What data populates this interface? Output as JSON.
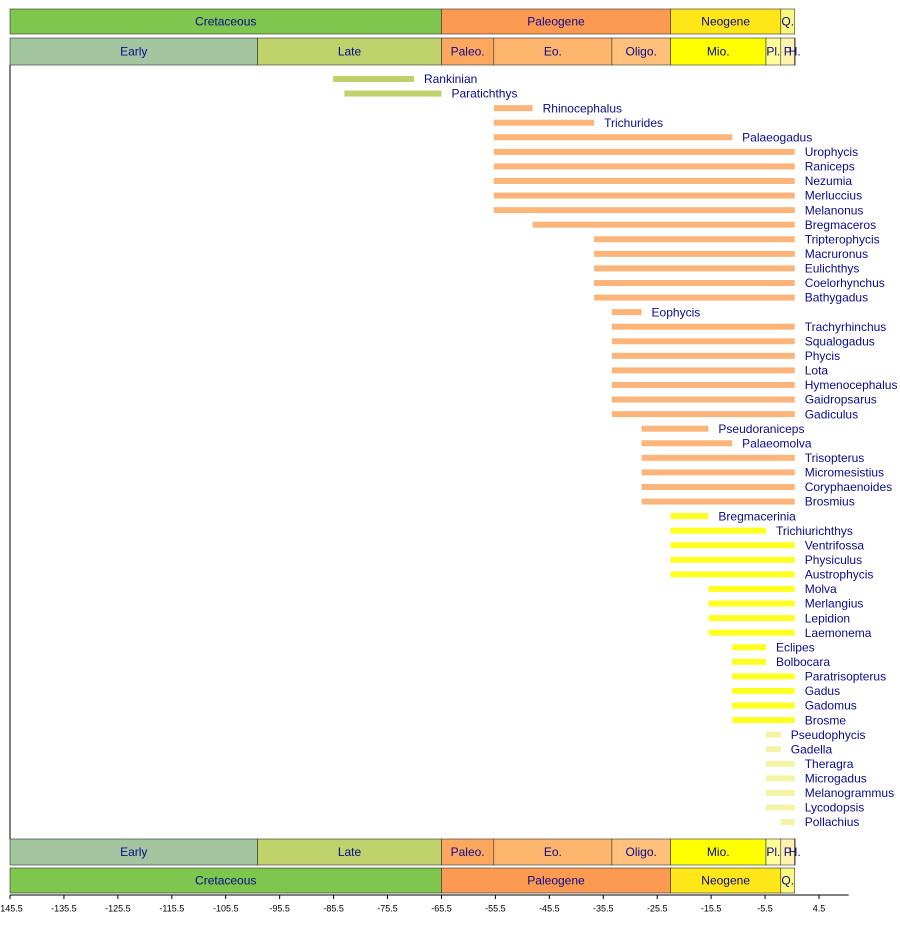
{
  "chart_data": {
    "type": "range-timeline",
    "xlim": [
      -145.5,
      10
    ],
    "xticks": [
      -145.5,
      -135.5,
      -125.5,
      -115.5,
      -105.5,
      -95.5,
      -85.5,
      -75.5,
      -65.5,
      -55.5,
      -45.5,
      -35.5,
      -25.5,
      -15.5,
      -5.5,
      4.5
    ],
    "periods": [
      {
        "name": "Cretaceous",
        "start": -145.5,
        "end": -65.5,
        "color": "#7fc64e"
      },
      {
        "name": "Paleogene",
        "start": -65.5,
        "end": -23.03,
        "color": "#fd9a52"
      },
      {
        "name": "Neogene",
        "start": -23.03,
        "end": -2.588,
        "color": "#ffe619"
      },
      {
        "name": "Q.",
        "start": -2.588,
        "end": 0,
        "color": "#f9f97f"
      }
    ],
    "epochs": [
      {
        "name": "Early",
        "start": -145.5,
        "end": -99.6,
        "color": "#a3c6a0"
      },
      {
        "name": "Late",
        "start": -99.6,
        "end": -65.5,
        "color": "#bfd16a"
      },
      {
        "name": "Paleo.",
        "start": -65.5,
        "end": -55.8,
        "color": "#fda75f"
      },
      {
        "name": "Eo.",
        "start": -55.8,
        "end": -33.9,
        "color": "#fdb46c"
      },
      {
        "name": "Oligo.",
        "start": -33.9,
        "end": -23.03,
        "color": "#fec07a"
      },
      {
        "name": "Mio.",
        "start": -23.03,
        "end": -5.332,
        "color": "#ffff00"
      },
      {
        "name": "Pl.",
        "start": -5.332,
        "end": -2.588,
        "color": "#ffff99"
      },
      {
        "name": "P",
        "start": -2.588,
        "end": -0.0117,
        "color": "#fff2ae"
      },
      {
        "name": "H.",
        "start": -0.0117,
        "end": 0,
        "color": "#fef2e0"
      }
    ],
    "groups": [
      {
        "color": "#bfd16a",
        "bars": [
          {
            "name": "Rankinian",
            "start": -85.6,
            "end": -70.6
          },
          {
            "name": "Paratichthys",
            "start": -83.5,
            "end": -65.5
          }
        ]
      },
      {
        "color": "#fbb57a",
        "bars": [
          {
            "name": "Rhinocephalus",
            "start": -55.8,
            "end": -48.6
          },
          {
            "name": "Trichurides",
            "start": -55.8,
            "end": -37.2
          },
          {
            "name": "Palaeogadus",
            "start": -55.8,
            "end": -11.6
          },
          {
            "name": "Urophycis",
            "start": -55.8,
            "end": 0
          },
          {
            "name": "Raniceps",
            "start": -55.8,
            "end": 0
          },
          {
            "name": "Nezumia",
            "start": -55.8,
            "end": 0
          },
          {
            "name": "Merluccius",
            "start": -55.8,
            "end": 0
          },
          {
            "name": "Melanonus",
            "start": -55.8,
            "end": 0
          },
          {
            "name": "Bregmaceros",
            "start": -48.6,
            "end": 0
          },
          {
            "name": "Tripterophycis",
            "start": -37.2,
            "end": 0
          },
          {
            "name": "Macruronus",
            "start": -37.2,
            "end": 0
          },
          {
            "name": "Eulichthys",
            "start": -37.2,
            "end": 0
          },
          {
            "name": "Coelorhynchus",
            "start": -37.2,
            "end": 0
          },
          {
            "name": "Bathygadus",
            "start": -37.2,
            "end": 0
          },
          {
            "name": "Eophycis",
            "start": -33.9,
            "end": -28.4
          },
          {
            "name": "Trachyrhinchus",
            "start": -33.9,
            "end": 0
          },
          {
            "name": "Squalogadus",
            "start": -33.9,
            "end": 0
          },
          {
            "name": "Phycis",
            "start": -33.9,
            "end": 0
          },
          {
            "name": "Lota",
            "start": -33.9,
            "end": 0
          },
          {
            "name": "Hymenocephalus",
            "start": -33.9,
            "end": 0
          },
          {
            "name": "Gaidropsarus",
            "start": -33.9,
            "end": 0
          },
          {
            "name": "Gadiculus",
            "start": -33.9,
            "end": 0
          },
          {
            "name": "Pseudoraniceps",
            "start": -28.4,
            "end": -16.0
          },
          {
            "name": "Palaeomolva",
            "start": -28.4,
            "end": -11.6
          },
          {
            "name": "Trisopterus",
            "start": -28.4,
            "end": 0
          },
          {
            "name": "Micromesistius",
            "start": -28.4,
            "end": 0
          },
          {
            "name": "Coryphaenoides",
            "start": -28.4,
            "end": 0
          },
          {
            "name": "Brosmius",
            "start": -28.4,
            "end": 0
          }
        ]
      },
      {
        "color": "#ffff22",
        "bars": [
          {
            "name": "Bregmacerinia",
            "start": -23.03,
            "end": -16.0
          },
          {
            "name": "Trichiurichthys",
            "start": -23.03,
            "end": -5.332
          },
          {
            "name": "Ventrifossa",
            "start": -23.03,
            "end": 0
          },
          {
            "name": "Physiculus",
            "start": -23.03,
            "end": 0
          },
          {
            "name": "Austrophycis",
            "start": -23.03,
            "end": 0
          },
          {
            "name": "Molva",
            "start": -15.97,
            "end": 0
          },
          {
            "name": "Merlangius",
            "start": -15.97,
            "end": 0
          },
          {
            "name": "Lepidion",
            "start": -15.97,
            "end": 0
          },
          {
            "name": "Laemonema",
            "start": -15.97,
            "end": 0
          },
          {
            "name": "Eclipes",
            "start": -11.6,
            "end": -5.332
          },
          {
            "name": "Bolbocara",
            "start": -11.6,
            "end": -5.332
          },
          {
            "name": "Paratrisopterus",
            "start": -11.6,
            "end": 0
          },
          {
            "name": "Gadus",
            "start": -11.6,
            "end": 0
          },
          {
            "name": "Gadomus",
            "start": -11.6,
            "end": 0
          },
          {
            "name": "Brosme",
            "start": -11.6,
            "end": 0
          }
        ]
      },
      {
        "color": "#f4f4a8",
        "bars": [
          {
            "name": "Pseudophycis",
            "start": -5.332,
            "end": -2.588
          },
          {
            "name": "Gadella",
            "start": -5.332,
            "end": -2.588
          },
          {
            "name": "Theragra",
            "start": -5.332,
            "end": 0
          },
          {
            "name": "Microgadus",
            "start": -5.332,
            "end": 0
          },
          {
            "name": "Melanogrammus",
            "start": -5.332,
            "end": 0
          },
          {
            "name": "Lycodopsis",
            "start": -5.332,
            "end": 0
          },
          {
            "name": "Pollachius",
            "start": -2.588,
            "end": 0
          }
        ]
      }
    ]
  }
}
